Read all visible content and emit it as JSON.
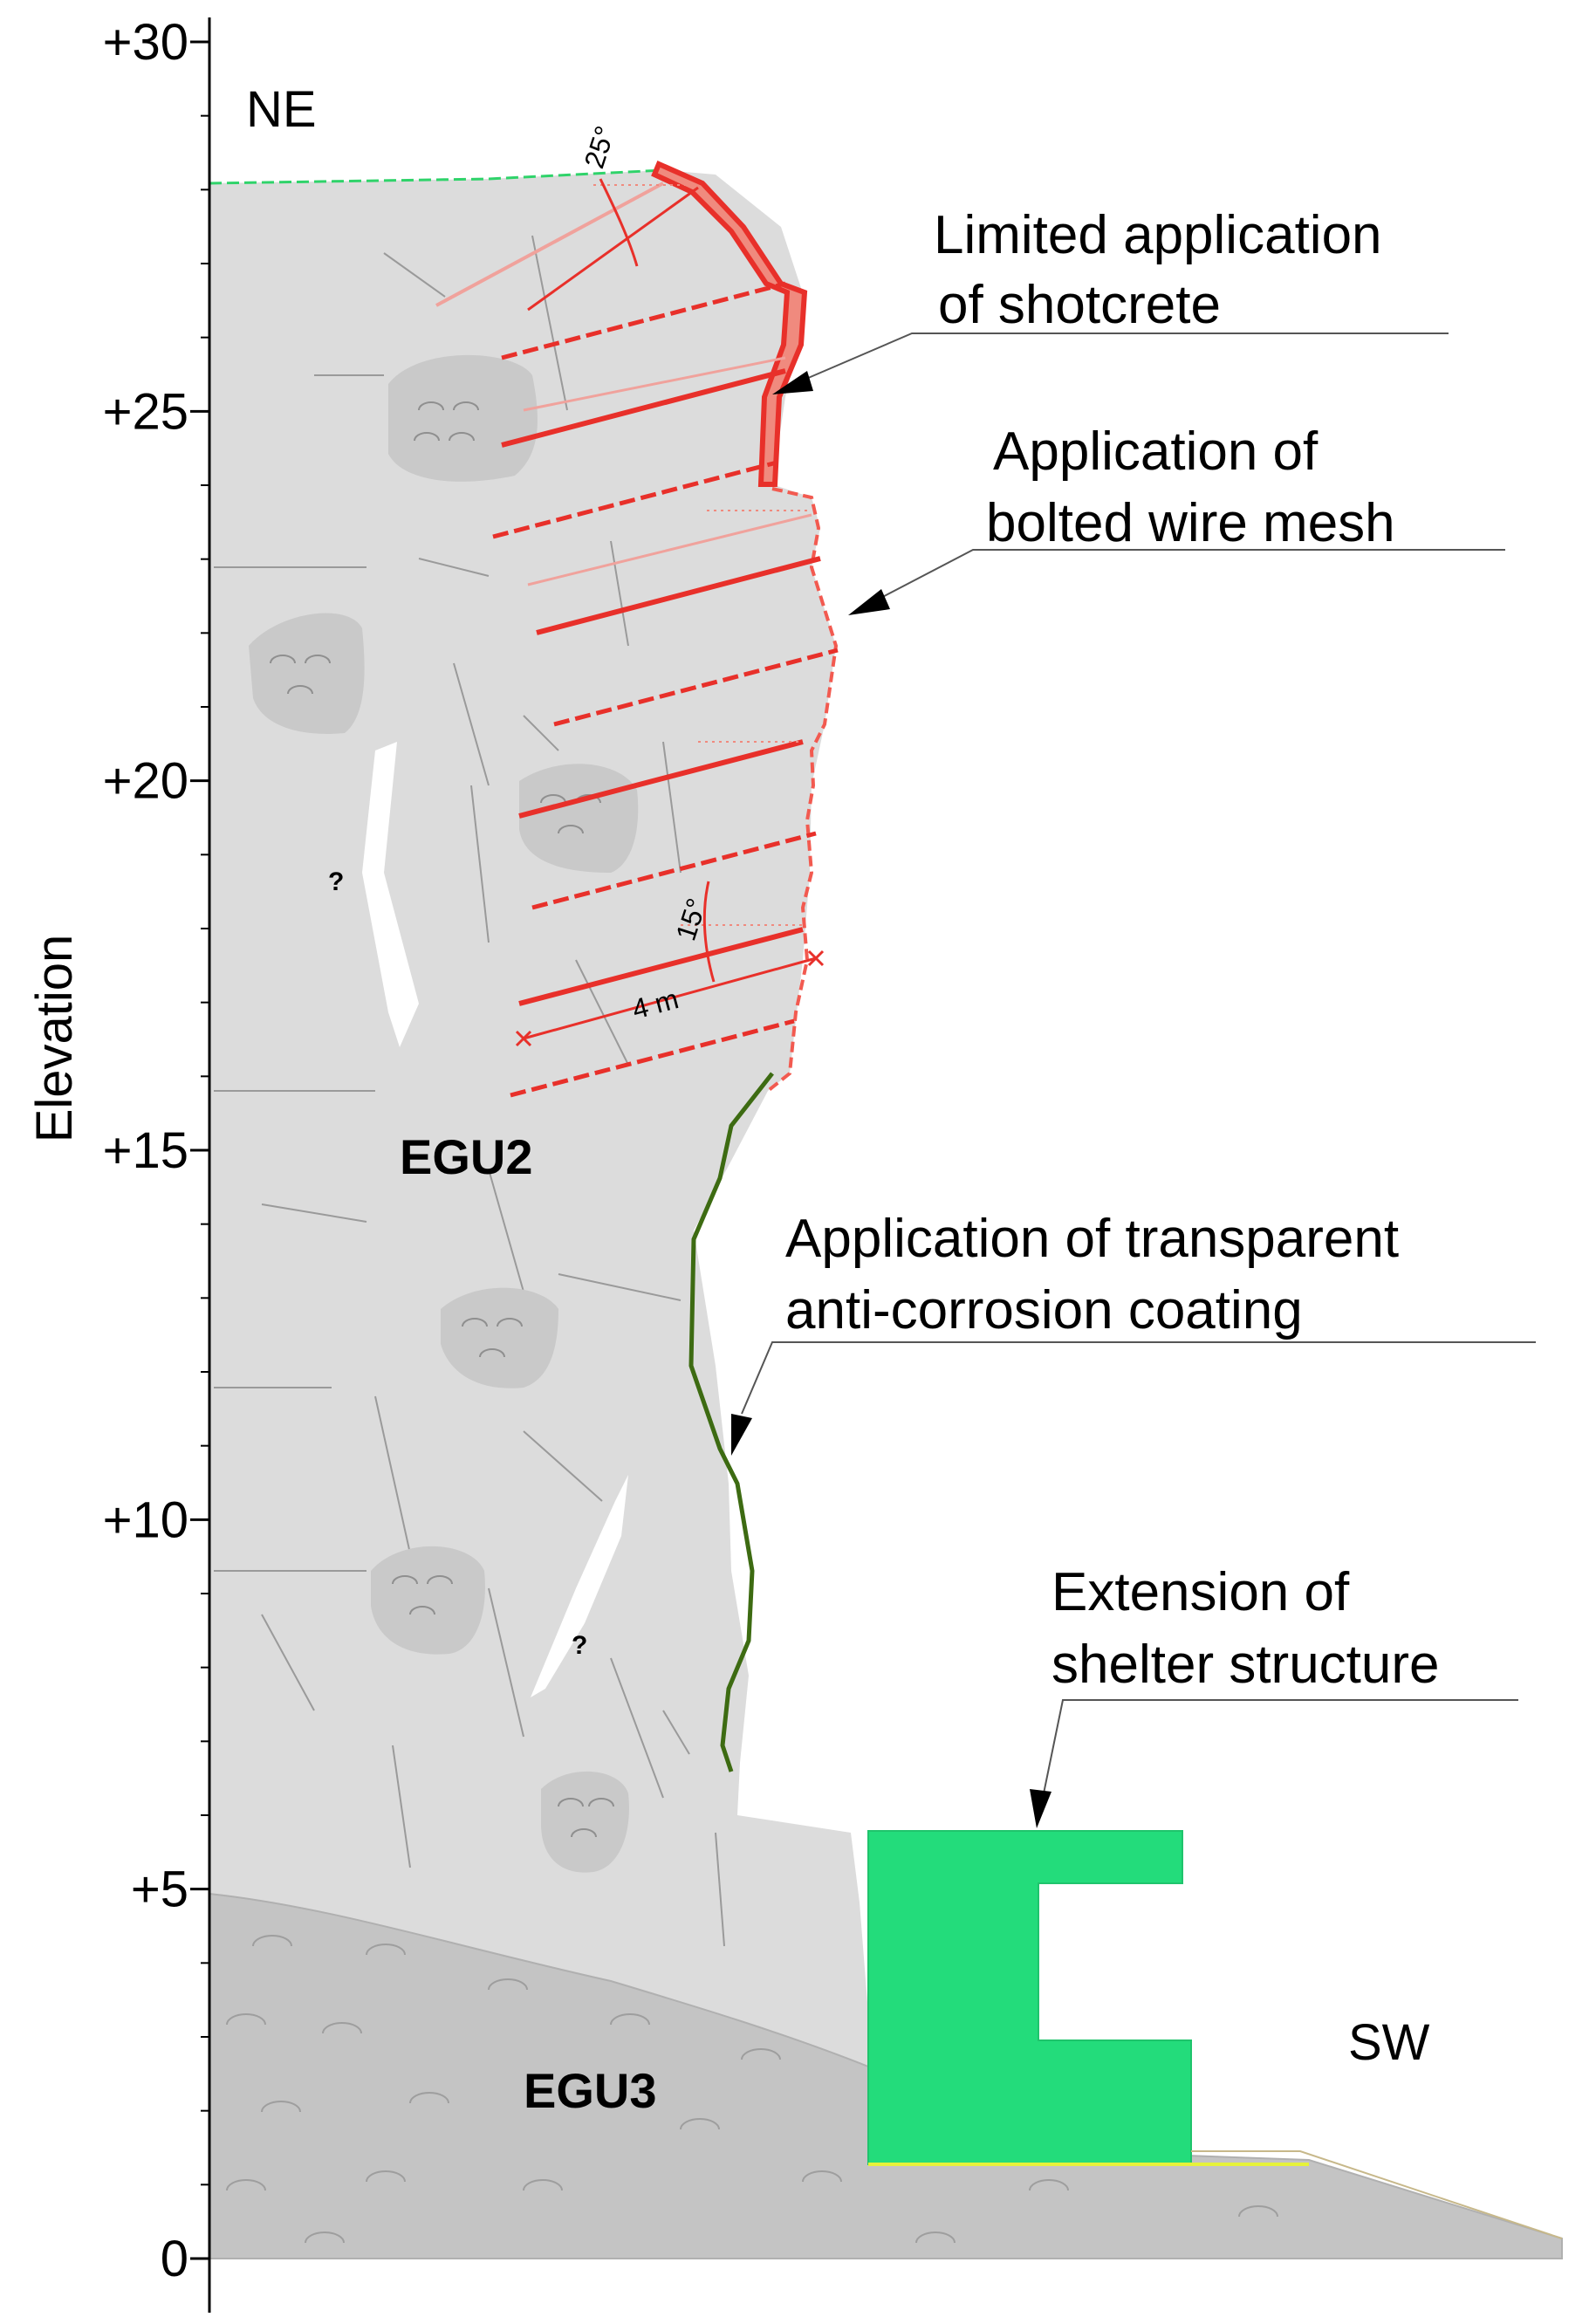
{
  "axis": {
    "label": "Elevation",
    "ticks": [
      {
        "label": "+30",
        "value": 30
      },
      {
        "label": "+25",
        "value": 25
      },
      {
        "label": "+20",
        "value": 20
      },
      {
        "label": "+15",
        "value": 15
      },
      {
        "label": "+10",
        "value": 10
      },
      {
        "label": "+5",
        "value": 5
      },
      {
        "label": "0",
        "value": 0
      }
    ]
  },
  "directions": {
    "left": "NE",
    "right": "SW"
  },
  "units": {
    "upper": "EGU2",
    "lower": "EGU3"
  },
  "annotations": {
    "shotcrete": {
      "line1": "Limited application",
      "line2": "of shotcrete"
    },
    "wire_mesh": {
      "line1": "Application of",
      "line2": "bolted wire mesh"
    },
    "coating": {
      "line1": "Application of transparent",
      "line2": "anti-corrosion coating"
    },
    "shelter": {
      "line1": "Extension of",
      "line2": "shelter structure"
    }
  },
  "dimensions": {
    "angle_top": "25°",
    "angle_bottom": "15°",
    "bolt_length": "4 m",
    "unknown_mark": "?"
  },
  "colors": {
    "egu2_fill": "#dcdcdc",
    "egu3_fill": "#c4c4c4",
    "reinforcement": "#e8302a",
    "coating": "#3d6b12",
    "shelter": "#23dc7b"
  }
}
